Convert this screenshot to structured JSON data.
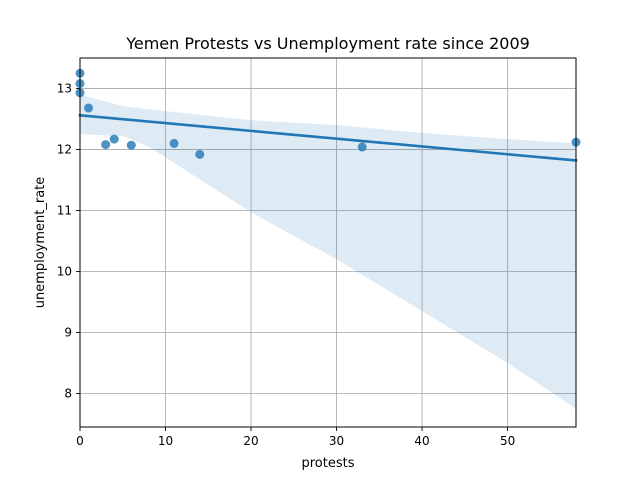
{
  "chart_data": {
    "type": "scatter",
    "title": "Yemen Protests vs Unemployment rate since 2009",
    "xlabel": "protests",
    "ylabel": "unemployment_rate",
    "xlim": [
      0,
      58
    ],
    "ylim": [
      7.45,
      13.5
    ],
    "xticks": [
      0,
      10,
      20,
      30,
      40,
      50
    ],
    "yticks": [
      8,
      9,
      10,
      11,
      12,
      13
    ],
    "grid": true,
    "colors": {
      "points": "#1f77b4",
      "line": "#1f77b4",
      "band": "#1f77b4"
    },
    "points": [
      {
        "x": 0,
        "y": 13.25
      },
      {
        "x": 0,
        "y": 13.08
      },
      {
        "x": 0,
        "y": 12.93
      },
      {
        "x": 1,
        "y": 12.68
      },
      {
        "x": 3,
        "y": 12.08
      },
      {
        "x": 4,
        "y": 12.17
      },
      {
        "x": 6,
        "y": 12.07
      },
      {
        "x": 11,
        "y": 12.1
      },
      {
        "x": 14,
        "y": 11.92
      },
      {
        "x": 33,
        "y": 12.04
      },
      {
        "x": 58,
        "y": 12.12
      }
    ],
    "regression": {
      "x": [
        0,
        58
      ],
      "y": [
        12.56,
        11.82
      ]
    },
    "confidence_band": [
      {
        "x": 0,
        "lower": 12.25,
        "upper": 12.9
      },
      {
        "x": 5,
        "lower": 12.22,
        "upper": 12.71
      },
      {
        "x": 8,
        "lower": 12.05,
        "upper": 12.66
      },
      {
        "x": 20,
        "lower": 10.97,
        "upper": 12.48
      },
      {
        "x": 30,
        "lower": 10.2,
        "upper": 12.4
      },
      {
        "x": 40,
        "lower": 9.35,
        "upper": 12.27
      },
      {
        "x": 50,
        "lower": 8.5,
        "upper": 12.17
      },
      {
        "x": 58,
        "lower": 7.75,
        "upper": 12.1
      }
    ]
  }
}
